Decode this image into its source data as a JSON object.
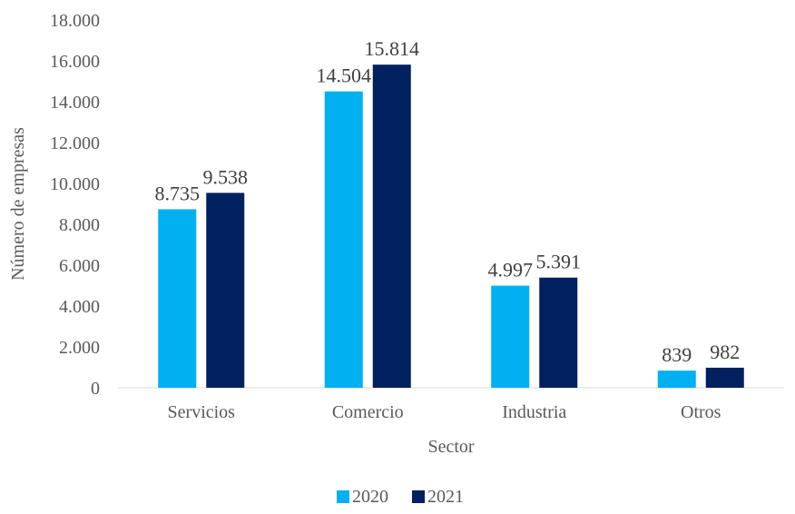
{
  "chart_data": {
    "type": "bar",
    "title": "",
    "categories": [
      "Servicios",
      "Comercio",
      "Industria",
      "Otros"
    ],
    "series": [
      {
        "name": "2020",
        "values": [
          8735,
          14504,
          4997,
          839
        ],
        "labels": [
          "8.735",
          "14.504",
          "4.997",
          "839"
        ],
        "color": "#00B0F0"
      },
      {
        "name": "2021",
        "values": [
          9538,
          15814,
          5391,
          982
        ],
        "labels": [
          "9.538",
          "15.814",
          "5.391",
          "982"
        ],
        "color": "#002060"
      }
    ],
    "xlabel": "Sector",
    "ylabel": "Número de empresas",
    "ylim": [
      0,
      18000
    ],
    "yticks": [
      0,
      2000,
      4000,
      6000,
      8000,
      10000,
      12000,
      14000,
      16000,
      18000
    ],
    "ytick_labels": [
      "0",
      "2.000",
      "4.000",
      "6.000",
      "8.000",
      "10.000",
      "12.000",
      "14.000",
      "16.000",
      "18.000"
    ],
    "grid": false,
    "legend": "bottom"
  }
}
